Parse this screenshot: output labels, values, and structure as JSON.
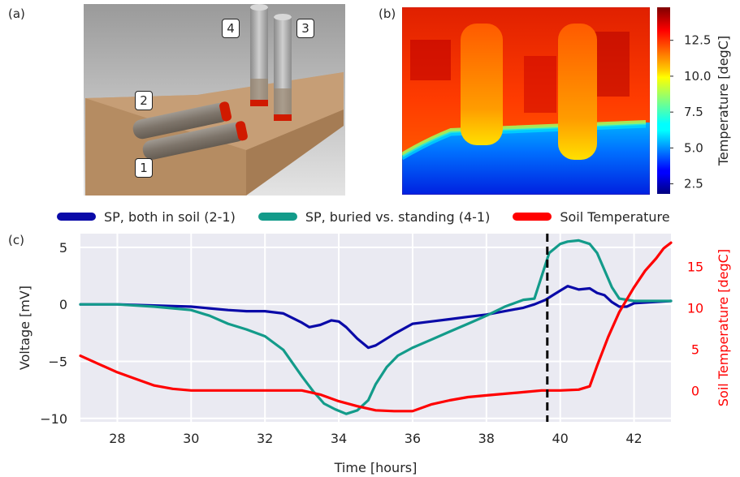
{
  "panel_labels": {
    "a": "(a)",
    "b": "(b)",
    "c": "(c)"
  },
  "panel_a": {
    "callouts": [
      "1",
      "2",
      "3",
      "4"
    ]
  },
  "panel_b": {
    "colorbar": {
      "label": "Temperature [degC]",
      "ticks": [
        "2.5",
        "5.0",
        "7.5",
        "10.0",
        "12.5"
      ],
      "range": [
        1.8,
        14.8
      ],
      "colormap": "jet"
    }
  },
  "legend": {
    "items": [
      {
        "label": "SP, both in soil (2-1)",
        "color": "#0a0aa8"
      },
      {
        "label": "SP, buried vs. standing (4-1)",
        "color": "#139b8a"
      },
      {
        "label": "Soil Temperature",
        "color": "#ff0000"
      }
    ]
  },
  "chart_data": {
    "type": "line",
    "xlabel": "Time [hours]",
    "ylabel": "Voltage [mV]",
    "y2label": "Soil Temperature [degC]",
    "xlim": [
      27,
      43
    ],
    "ylim": [
      -10.3,
      6.2
    ],
    "y2lim": [
      -3.8,
      19.0
    ],
    "xticks": [
      "28",
      "30",
      "32",
      "34",
      "36",
      "38",
      "40",
      "42"
    ],
    "yticks": [
      "5",
      "0",
      "−5",
      "−10"
    ],
    "y2ticks": [
      "15",
      "10",
      "5",
      "0"
    ],
    "vline_x": 39.65,
    "series": [
      {
        "axis": "left",
        "color": "#0a0aa8",
        "x": [
          27,
          28,
          29,
          30,
          30.5,
          31,
          31.5,
          32,
          32.5,
          33,
          33.2,
          33.5,
          33.8,
          34,
          34.2,
          34.5,
          34.8,
          35,
          35.5,
          36,
          36.5,
          37,
          37.5,
          38,
          38.5,
          39,
          39.3,
          39.6,
          39.8,
          40,
          40.2,
          40.5,
          40.8,
          41,
          41.2,
          41.4,
          41.6,
          41.8,
          42,
          42.5,
          43
        ],
        "y": [
          0.0,
          0.0,
          -0.1,
          -0.2,
          -0.35,
          -0.5,
          -0.6,
          -0.6,
          -0.8,
          -1.6,
          -2.0,
          -1.8,
          -1.4,
          -1.5,
          -2.0,
          -3.0,
          -3.8,
          -3.6,
          -2.6,
          -1.7,
          -1.5,
          -1.3,
          -1.1,
          -0.9,
          -0.6,
          -0.3,
          0.0,
          0.4,
          0.8,
          1.2,
          1.6,
          1.3,
          1.4,
          1.0,
          0.8,
          0.2,
          -0.2,
          -0.2,
          0.1,
          0.2,
          0.3
        ]
      },
      {
        "axis": "left",
        "color": "#139b8a",
        "x": [
          27,
          28,
          29,
          30,
          30.5,
          31,
          31.5,
          32,
          32.5,
          33,
          33.3,
          33.6,
          33.9,
          34.2,
          34.5,
          34.8,
          35,
          35.3,
          35.6,
          36,
          36.5,
          37,
          37.5,
          38,
          38.5,
          39,
          39.3,
          39.5,
          39.7,
          40,
          40.2,
          40.5,
          40.8,
          41,
          41.2,
          41.4,
          41.6,
          42,
          42.5,
          43
        ],
        "y": [
          0.0,
          0.0,
          -0.2,
          -0.5,
          -1.0,
          -1.7,
          -2.2,
          -2.8,
          -4.0,
          -6.3,
          -7.6,
          -8.7,
          -9.2,
          -9.6,
          -9.3,
          -8.4,
          -7.0,
          -5.5,
          -4.5,
          -3.8,
          -3.1,
          -2.4,
          -1.7,
          -1.0,
          -0.2,
          0.4,
          0.5,
          2.5,
          4.5,
          5.3,
          5.5,
          5.6,
          5.3,
          4.5,
          3.0,
          1.5,
          0.5,
          0.3,
          0.3,
          0.3
        ]
      },
      {
        "axis": "right",
        "color": "#ff0000",
        "x": [
          27,
          27.5,
          28,
          28.5,
          29,
          29.5,
          30,
          31,
          32,
          33,
          33.5,
          34,
          34.5,
          35,
          35.5,
          36,
          36.5,
          37,
          37.5,
          38,
          38.5,
          39,
          39.5,
          40,
          40.5,
          40.8,
          41,
          41.3,
          41.6,
          42,
          42.3,
          42.6,
          42.8,
          43
        ],
        "y": [
          4.2,
          3.2,
          2.2,
          1.4,
          0.6,
          0.2,
          0.0,
          0.0,
          0.0,
          0.0,
          -0.5,
          -1.3,
          -1.9,
          -2.4,
          -2.5,
          -2.5,
          -1.7,
          -1.2,
          -0.8,
          -0.6,
          -0.4,
          -0.2,
          0.0,
          0.0,
          0.1,
          0.5,
          3.0,
          6.5,
          9.5,
          12.5,
          14.5,
          16.0,
          17.2,
          17.9
        ]
      }
    ]
  }
}
